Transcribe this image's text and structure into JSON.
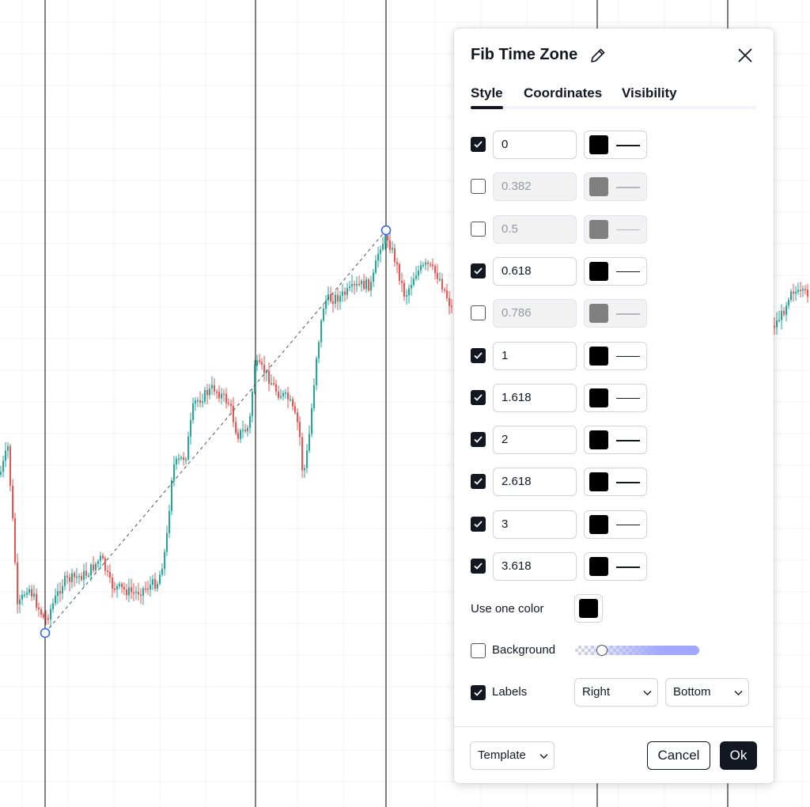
{
  "dialog": {
    "title": "Fib Time Zone",
    "tabs": [
      "Style",
      "Coordinates",
      "Visibility"
    ],
    "active_tab": "Style",
    "levels": [
      {
        "value": "0",
        "enabled": true,
        "color": "#000000"
      },
      {
        "value": "0.382",
        "enabled": false,
        "color": "#808080"
      },
      {
        "value": "0.5",
        "enabled": false,
        "color": "#808080"
      },
      {
        "value": "0.618",
        "enabled": true,
        "color": "#000000"
      },
      {
        "value": "0.786",
        "enabled": false,
        "color": "#808080"
      },
      {
        "value": "1",
        "enabled": true,
        "color": "#000000"
      },
      {
        "value": "1.618",
        "enabled": true,
        "color": "#000000"
      },
      {
        "value": "2",
        "enabled": true,
        "color": "#000000"
      },
      {
        "value": "2.618",
        "enabled": true,
        "color": "#000000"
      },
      {
        "value": "3",
        "enabled": true,
        "color": "#000000"
      },
      {
        "value": "3.618",
        "enabled": true,
        "color": "#000000"
      }
    ],
    "use_one_color_label": "Use one color",
    "one_color": "#000000",
    "background_label": "Background",
    "background_enabled": false,
    "background_opacity_fraction": 0.2,
    "labels_label": "Labels",
    "labels_enabled": true,
    "labels_horizontal": "Right",
    "labels_vertical": "Bottom",
    "template_label": "Template",
    "cancel_label": "Cancel",
    "ok_label": "Ok"
  },
  "colors": {
    "up_candle": "#26a69a",
    "down_candle": "#ef5350",
    "anchor_point": "#2962ff",
    "zone_line": "#000000",
    "slider_accent": "#a0a8ff"
  }
}
